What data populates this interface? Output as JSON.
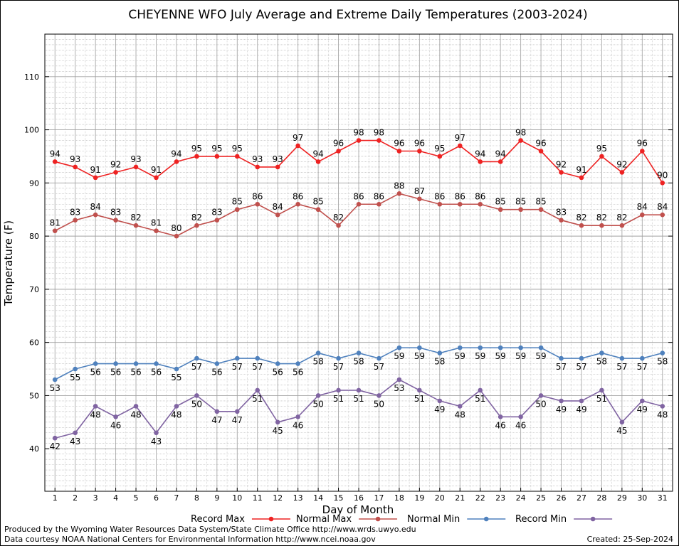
{
  "chart_data": {
    "type": "line",
    "title": "CHEYENNE WFO July Average and Extreme Daily Temperatures (2003-2024)",
    "xlabel": "Day of Month",
    "ylabel": "Temperature (F)",
    "x": [
      1,
      2,
      3,
      4,
      5,
      6,
      7,
      8,
      9,
      10,
      11,
      12,
      13,
      14,
      15,
      16,
      17,
      18,
      19,
      20,
      21,
      22,
      23,
      24,
      25,
      26,
      27,
      28,
      29,
      30,
      31
    ],
    "xlim": [
      0.5,
      31.5
    ],
    "ylim": [
      32,
      118
    ],
    "yticks": [
      40,
      50,
      60,
      70,
      80,
      90,
      100,
      110
    ],
    "grid": true,
    "legend_position": "bottom",
    "series": [
      {
        "name": "Record Max",
        "color": "#ee2222",
        "labels_above": true,
        "values": [
          94,
          93,
          91,
          92,
          93,
          91,
          94,
          95,
          95,
          95,
          93,
          93,
          97,
          94,
          96,
          98,
          98,
          96,
          96,
          95,
          97,
          94,
          94,
          98,
          96,
          92,
          91,
          95,
          92,
          96,
          90
        ]
      },
      {
        "name": "Normal Max",
        "color": "#c0504d",
        "labels_above": true,
        "values": [
          81,
          83,
          84,
          83,
          82,
          81,
          80,
          82,
          83,
          85,
          86,
          84,
          86,
          85,
          82,
          86,
          86,
          88,
          87,
          86,
          86,
          86,
          85,
          85,
          85,
          83,
          82,
          82,
          82,
          84,
          84
        ]
      },
      {
        "name": "Normal Min",
        "color": "#4f81bd",
        "labels_above": false,
        "values": [
          53,
          55,
          56,
          56,
          56,
          56,
          55,
          57,
          56,
          57,
          57,
          56,
          56,
          58,
          57,
          58,
          57,
          59,
          59,
          58,
          59,
          59,
          59,
          59,
          59,
          57,
          57,
          58,
          57,
          57,
          58
        ]
      },
      {
        "name": "Record Min",
        "color": "#8064a2",
        "labels_above": false,
        "values": [
          42,
          43,
          48,
          46,
          48,
          43,
          48,
          50,
          47,
          47,
          51,
          45,
          46,
          50,
          51,
          51,
          50,
          53,
          51,
          49,
          48,
          51,
          46,
          46,
          50,
          49,
          49,
          51,
          45,
          49,
          48
        ]
      }
    ]
  },
  "footer": {
    "produced_by": "Produced by the Wyoming Water Resources Data System/State Climate Office http://www.wrds.uwyo.edu",
    "data_courtesy": "Data courtesy NOAA National Centers for Environmental Information http://www.ncei.noaa.gov",
    "created": "Created:  25-Sep-2024"
  }
}
